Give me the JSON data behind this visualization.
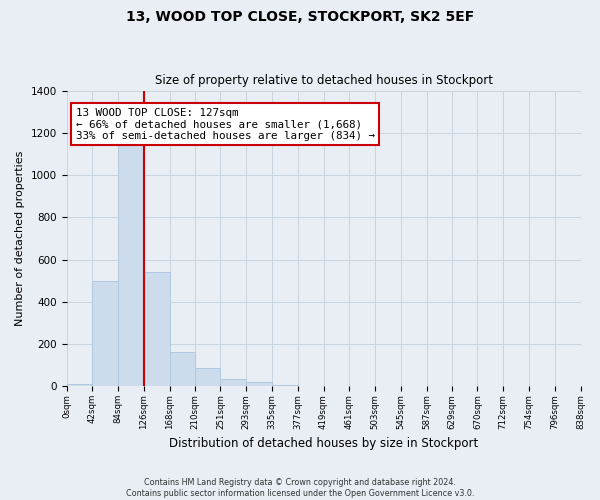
{
  "title": "13, WOOD TOP CLOSE, STOCKPORT, SK2 5EF",
  "subtitle": "Size of property relative to detached houses in Stockport",
  "xlabel": "Distribution of detached houses by size in Stockport",
  "ylabel": "Number of detached properties",
  "bin_edges": [
    0,
    42,
    84,
    126,
    168,
    210,
    251,
    293,
    335,
    377,
    419,
    461,
    503,
    545,
    587,
    629,
    670,
    712,
    754,
    796,
    838
  ],
  "bar_heights": [
    10,
    500,
    1150,
    540,
    160,
    85,
    35,
    20,
    5,
    2,
    1,
    0,
    0,
    0,
    0,
    0,
    0,
    0,
    0,
    0
  ],
  "bar_color": "#cddcec",
  "bar_edge_color": "#b0c8e0",
  "property_line_x": 126,
  "property_line_color": "#cc0000",
  "annotation_title": "13 WOOD TOP CLOSE: 127sqm",
  "annotation_line1": "← 66% of detached houses are smaller (1,668)",
  "annotation_line2": "33% of semi-detached houses are larger (834) →",
  "annotation_box_facecolor": "#ffffff",
  "annotation_box_edgecolor": "#cc0000",
  "xlim_left": 0,
  "xlim_right": 838,
  "ylim_bottom": 0,
  "ylim_top": 1400,
  "yticks": [
    0,
    200,
    400,
    600,
    800,
    1000,
    1200,
    1400
  ],
  "xtick_labels": [
    "0sqm",
    "42sqm",
    "84sqm",
    "126sqm",
    "168sqm",
    "210sqm",
    "251sqm",
    "293sqm",
    "335sqm",
    "377sqm",
    "419sqm",
    "461sqm",
    "503sqm",
    "545sqm",
    "587sqm",
    "629sqm",
    "670sqm",
    "712sqm",
    "754sqm",
    "796sqm",
    "838sqm"
  ],
  "grid_color": "#c8d4e0",
  "bg_color": "#e8eef4",
  "footer_line1": "Contains HM Land Registry data © Crown copyright and database right 2024.",
  "footer_line2": "Contains public sector information licensed under the Open Government Licence v3.0."
}
